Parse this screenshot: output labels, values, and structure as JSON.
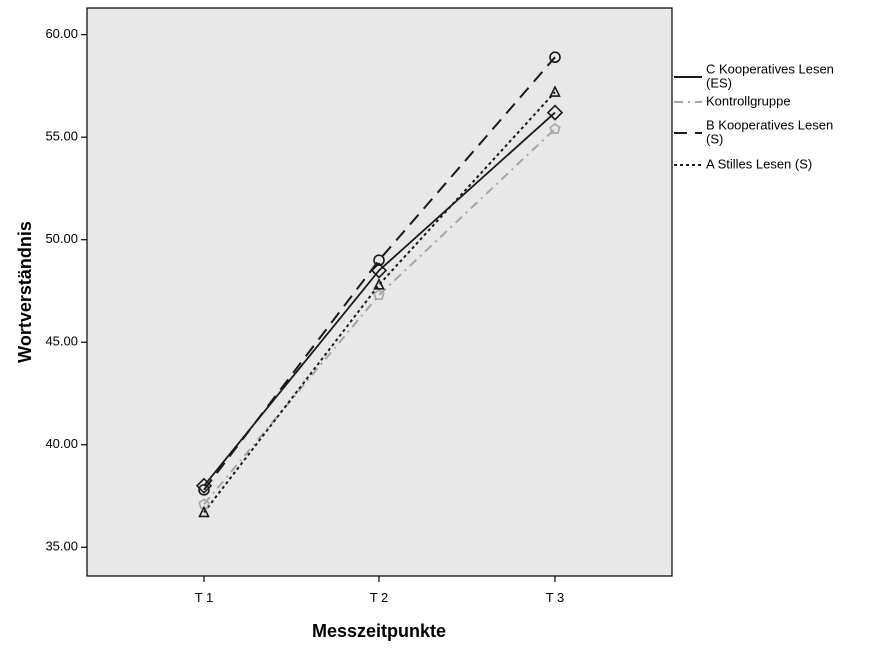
{
  "chart_data": {
    "type": "line",
    "title": "",
    "xlabel": "Messzeitpunkte",
    "ylabel": "Wortverständnis",
    "categories": [
      "T 1",
      "T 2",
      "T 3"
    ],
    "ylim": [
      33.6,
      61.3
    ],
    "yticks": [
      35,
      40,
      45,
      50,
      55,
      60
    ],
    "ytick_labels": [
      "35.00",
      "40.00",
      "45.00",
      "50.00",
      "55.00",
      "60.00"
    ],
    "grid": false,
    "legend_position": "right",
    "plot_background": "#e8e8e8",
    "series": [
      {
        "name": "C Kooperatives Lesen (ES)",
        "legend_lines": [
          "C Kooperatives Lesen",
          "(ES)"
        ],
        "values": [
          38.0,
          48.5,
          56.2
        ],
        "line_style": "solid",
        "color": "#1a1a1a",
        "marker": "diamond"
      },
      {
        "name": "Kontrollgruppe",
        "legend_lines": [
          "Kontrollgruppe"
        ],
        "values": [
          37.1,
          47.3,
          55.4
        ],
        "line_style": "dash-dot",
        "color": "#a6a6a6",
        "marker": "pentagon"
      },
      {
        "name": "B Kooperatives Lesen (S)",
        "legend_lines": [
          "B Kooperatives Lesen",
          "(S)"
        ],
        "values": [
          37.8,
          49.0,
          58.9
        ],
        "line_style": "dashed",
        "color": "#1a1a1a",
        "marker": "circle"
      },
      {
        "name": "A Stilles Lesen (S)",
        "legend_lines": [
          "A Stilles Lesen (S)"
        ],
        "values": [
          36.7,
          47.8,
          57.2
        ],
        "line_style": "dotted",
        "color": "#1a1a1a",
        "marker": "triangle"
      }
    ]
  }
}
